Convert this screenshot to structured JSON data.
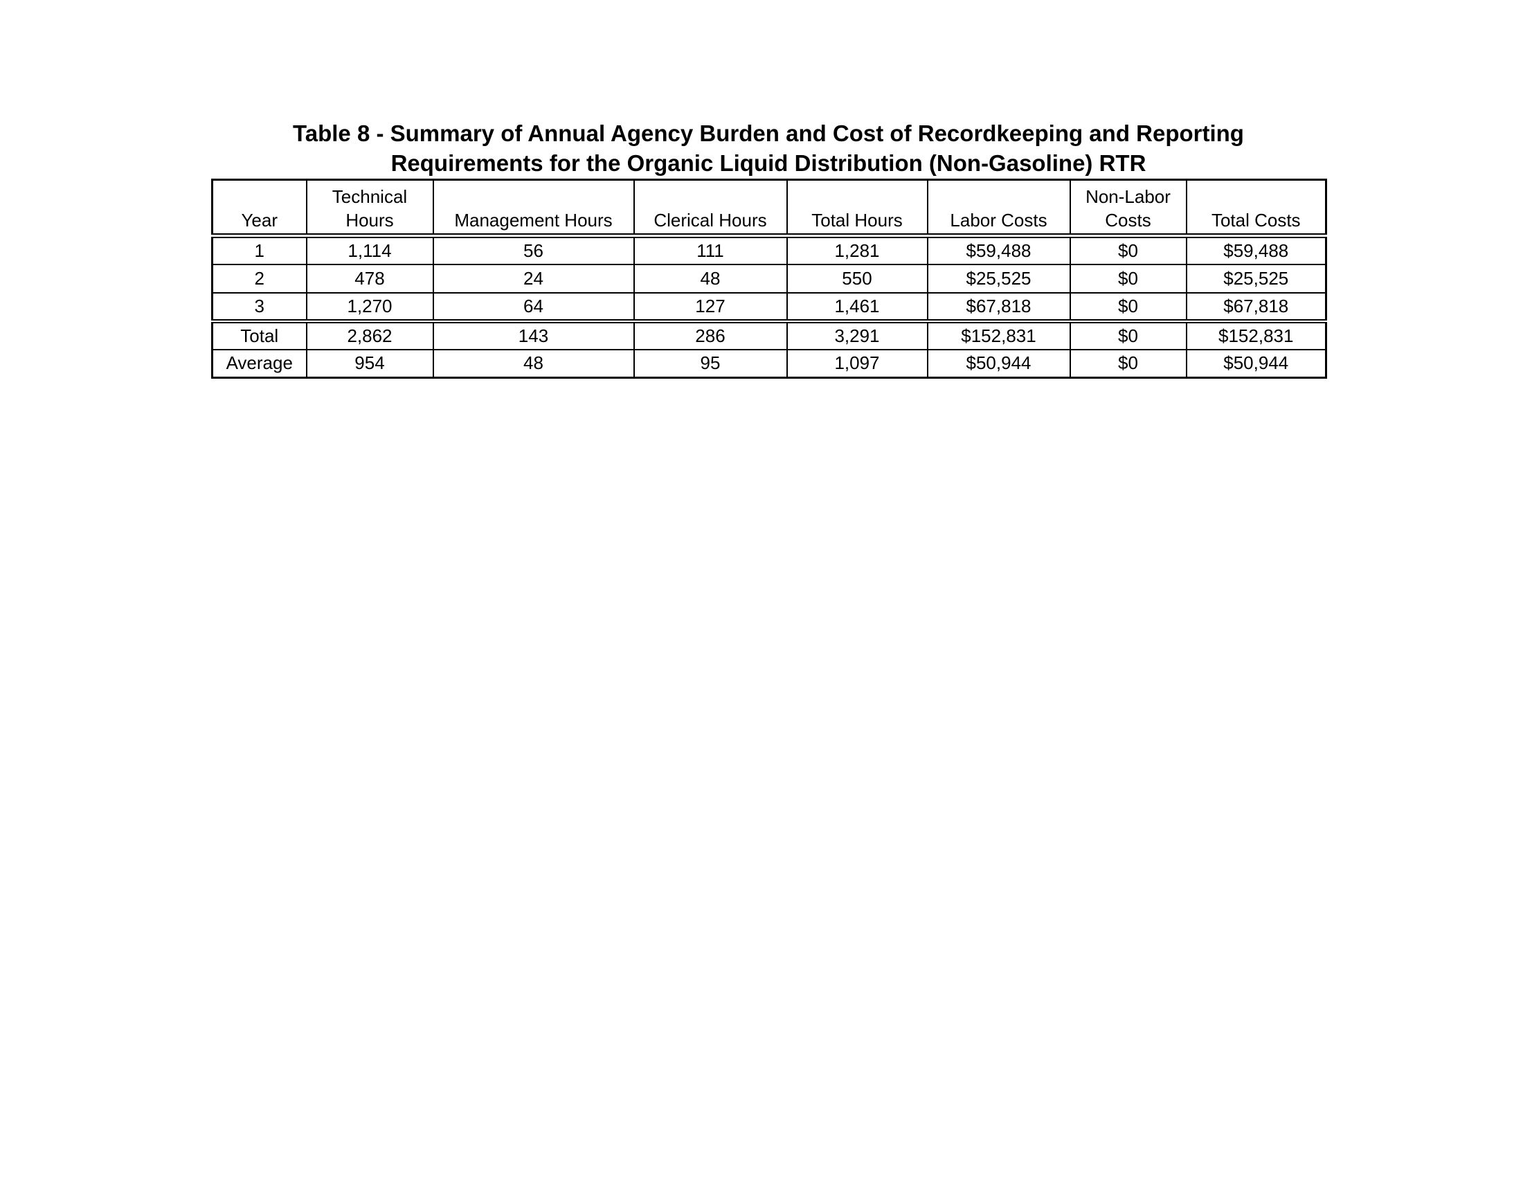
{
  "title": {
    "line1": "Table 8 - Summary of Annual Agency Burden and Cost of Recordkeeping and Reporting",
    "line2": "Requirements for the Organic Liquid Distribution (Non-Gasoline) RTR"
  },
  "table": {
    "headers": [
      {
        "l1": "",
        "l2": "Year"
      },
      {
        "l1": "Technical",
        "l2": "Hours"
      },
      {
        "l1": "",
        "l2": "Management Hours"
      },
      {
        "l1": "",
        "l2": "Clerical Hours"
      },
      {
        "l1": "",
        "l2": "Total Hours"
      },
      {
        "l1": "",
        "l2": "Labor Costs"
      },
      {
        "l1": "Non-Labor",
        "l2": "Costs"
      },
      {
        "l1": "",
        "l2": "Total Costs"
      }
    ],
    "rows": [
      [
        "1",
        "1,114",
        "56",
        "111",
        "1,281",
        "$59,488",
        "$0",
        "$59,488"
      ],
      [
        "2",
        "478",
        "24",
        "48",
        "550",
        "$25,525",
        "$0",
        "$25,525"
      ],
      [
        "3",
        "1,270",
        "64",
        "127",
        "1,461",
        "$67,818",
        "$0",
        "$67,818"
      ],
      [
        "Total",
        "2,862",
        "143",
        "286",
        "3,291",
        "$152,831",
        "$0",
        "$152,831"
      ],
      [
        "Average",
        "954",
        "48",
        "95",
        "1,097",
        "$50,944",
        "$0",
        "$50,944"
      ]
    ]
  }
}
